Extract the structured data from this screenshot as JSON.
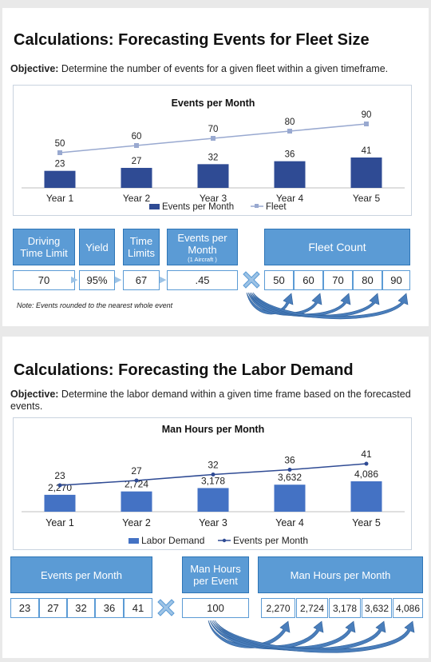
{
  "slide1": {
    "title": "Calculations: Forecasting Events for Fleet Size",
    "objective_label": "Objective:",
    "objective_text": " Determine the number of events for a given fleet within a given timeframe.",
    "inputs": [
      {
        "label_line1": "Driving",
        "label_line2": "Time Limit",
        "value": "70"
      },
      {
        "label_line1": "Yield",
        "label_line2": "",
        "value": "95%"
      },
      {
        "label_line1": "Time",
        "label_line2": "Limits",
        "value": "67"
      },
      {
        "label_line1": "Events per",
        "label_line2": "Month",
        "label_small": "(1 Aircraft )",
        "value": ".45"
      }
    ],
    "result_header": "Fleet Count",
    "result_values": [
      "50",
      "60",
      "70",
      "80",
      "90"
    ],
    "note": "Note: Events rounded to the nearest whole event"
  },
  "slide2": {
    "title": "Calculations: Forecasting the Labor Demand",
    "objective_label": "Objective:",
    "objective_text": " Determine the labor demand within a given time frame based on the forecasted events.",
    "left_header": "Events per Month",
    "left_values": [
      "23",
      "27",
      "32",
      "36",
      "41"
    ],
    "mid_header_line1": "Man Hours",
    "mid_header_line2": "per Event",
    "mid_value": "100",
    "right_header": "Man Hours per Month",
    "right_values": [
      "2,270",
      "2,724",
      "3,178",
      "3,632",
      "4,086"
    ]
  },
  "chart_data": [
    {
      "type": "bar",
      "title": "Events per Month",
      "categories": [
        "Year 1",
        "Year 2",
        "Year 3",
        "Year 4",
        "Year 5"
      ],
      "series": [
        {
          "name": "Events per Month",
          "type": "bar",
          "values": [
            23,
            27,
            32,
            36,
            41
          ],
          "labels": [
            "23",
            "27",
            "32",
            "36",
            "41"
          ],
          "color": "#2f4b94"
        },
        {
          "name": "Fleet",
          "type": "line",
          "values": [
            50,
            60,
            70,
            80,
            90
          ],
          "labels": [
            "50",
            "60",
            "70",
            "80",
            "90"
          ],
          "color": "#99a9d0"
        }
      ],
      "legend": "bottom",
      "grid": false
    },
    {
      "type": "bar",
      "title": "Man Hours per Month",
      "categories": [
        "Year 1",
        "Year 2",
        "Year 3",
        "Year 4",
        "Year 5"
      ],
      "series": [
        {
          "name": "Labor Demand",
          "type": "bar",
          "values": [
            2270,
            2724,
            3178,
            3632,
            4086
          ],
          "labels": [
            "2,270",
            "2,724",
            "3,178",
            "3,632",
            "4,086"
          ],
          "color": "#4472c4"
        },
        {
          "name": "Events per Month",
          "type": "line",
          "values": [
            23,
            27,
            32,
            36,
            41
          ],
          "labels": [
            "23",
            "27",
            "32",
            "36",
            "41"
          ],
          "color": "#2f4b94"
        }
      ],
      "legend": "bottom",
      "grid": false
    }
  ]
}
